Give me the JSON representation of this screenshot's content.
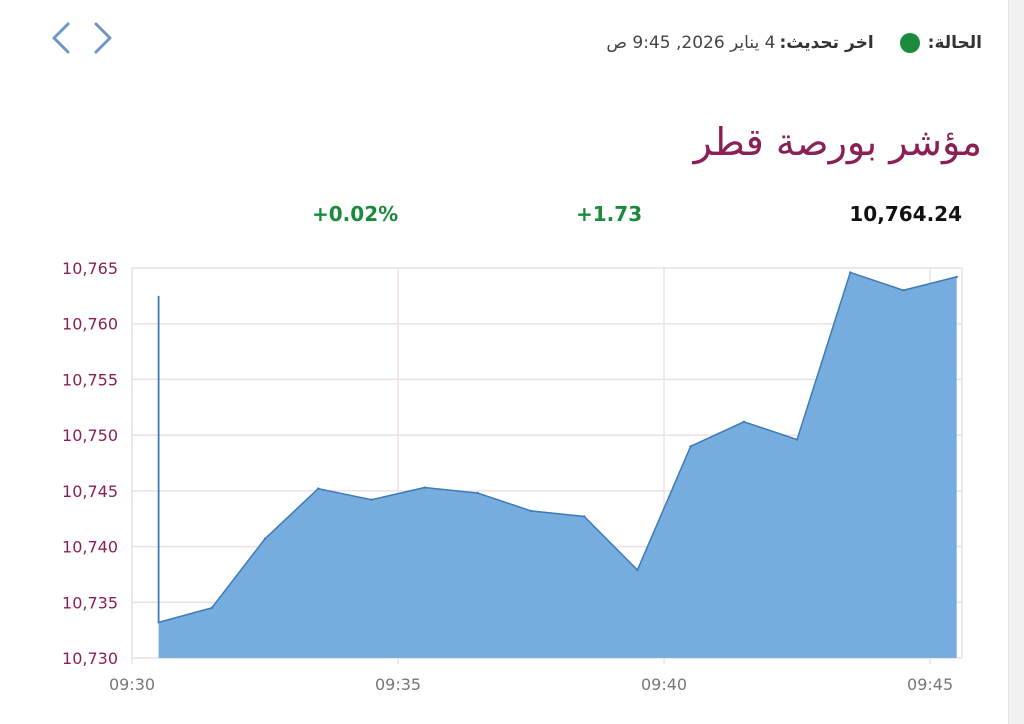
{
  "status": {
    "label": "الحالة:",
    "color": "#1a8a3c"
  },
  "last_update": {
    "label": "اخر تحديث:",
    "value": "4 يناير 2026, 9:45 ص"
  },
  "title": "مؤشر بورصة قطر",
  "quote": {
    "last": "10,764.24",
    "change": "+1.73",
    "change_pct": "+0.02%",
    "positive_color": "#1a8a3c"
  },
  "colors": {
    "accent": "#8a2055",
    "area_fill": "#6fa8dc",
    "area_line": "#3d7ab8",
    "grid": "#ecdfe6",
    "nav": "#6e96c4",
    "tick_x": "#777777"
  },
  "icons": {
    "prev": "chevron-left-icon",
    "next": "chevron-right-icon"
  },
  "chart_data": {
    "type": "area",
    "x_ticks": [
      "09:30",
      "09:35",
      "09:40",
      "09:45"
    ],
    "y_ticks": [
      "10,765",
      "10,760",
      "10,755",
      "10,750",
      "10,745",
      "10,740",
      "10,735",
      "10,730"
    ],
    "ylim": [
      10730,
      10765
    ],
    "xlim_minutes": [
      0,
      15.6
    ],
    "grid": true,
    "opening_spike": {
      "x": 0.5,
      "top": 10762.5
    },
    "points": [
      {
        "t": 0.5,
        "v": 10733.2
      },
      {
        "t": 1.5,
        "v": 10734.5
      },
      {
        "t": 2.5,
        "v": 10740.7
      },
      {
        "t": 3.5,
        "v": 10745.2
      },
      {
        "t": 4.5,
        "v": 10744.2
      },
      {
        "t": 5.5,
        "v": 10745.3
      },
      {
        "t": 6.5,
        "v": 10744.8
      },
      {
        "t": 7.5,
        "v": 10743.2
      },
      {
        "t": 8.5,
        "v": 10742.7
      },
      {
        "t": 9.5,
        "v": 10737.9
      },
      {
        "t": 10.5,
        "v": 10749.0
      },
      {
        "t": 11.5,
        "v": 10751.2
      },
      {
        "t": 12.5,
        "v": 10749.6
      },
      {
        "t": 13.5,
        "v": 10764.6
      },
      {
        "t": 14.5,
        "v": 10763.0
      },
      {
        "t": 15.5,
        "v": 10764.2
      }
    ]
  }
}
